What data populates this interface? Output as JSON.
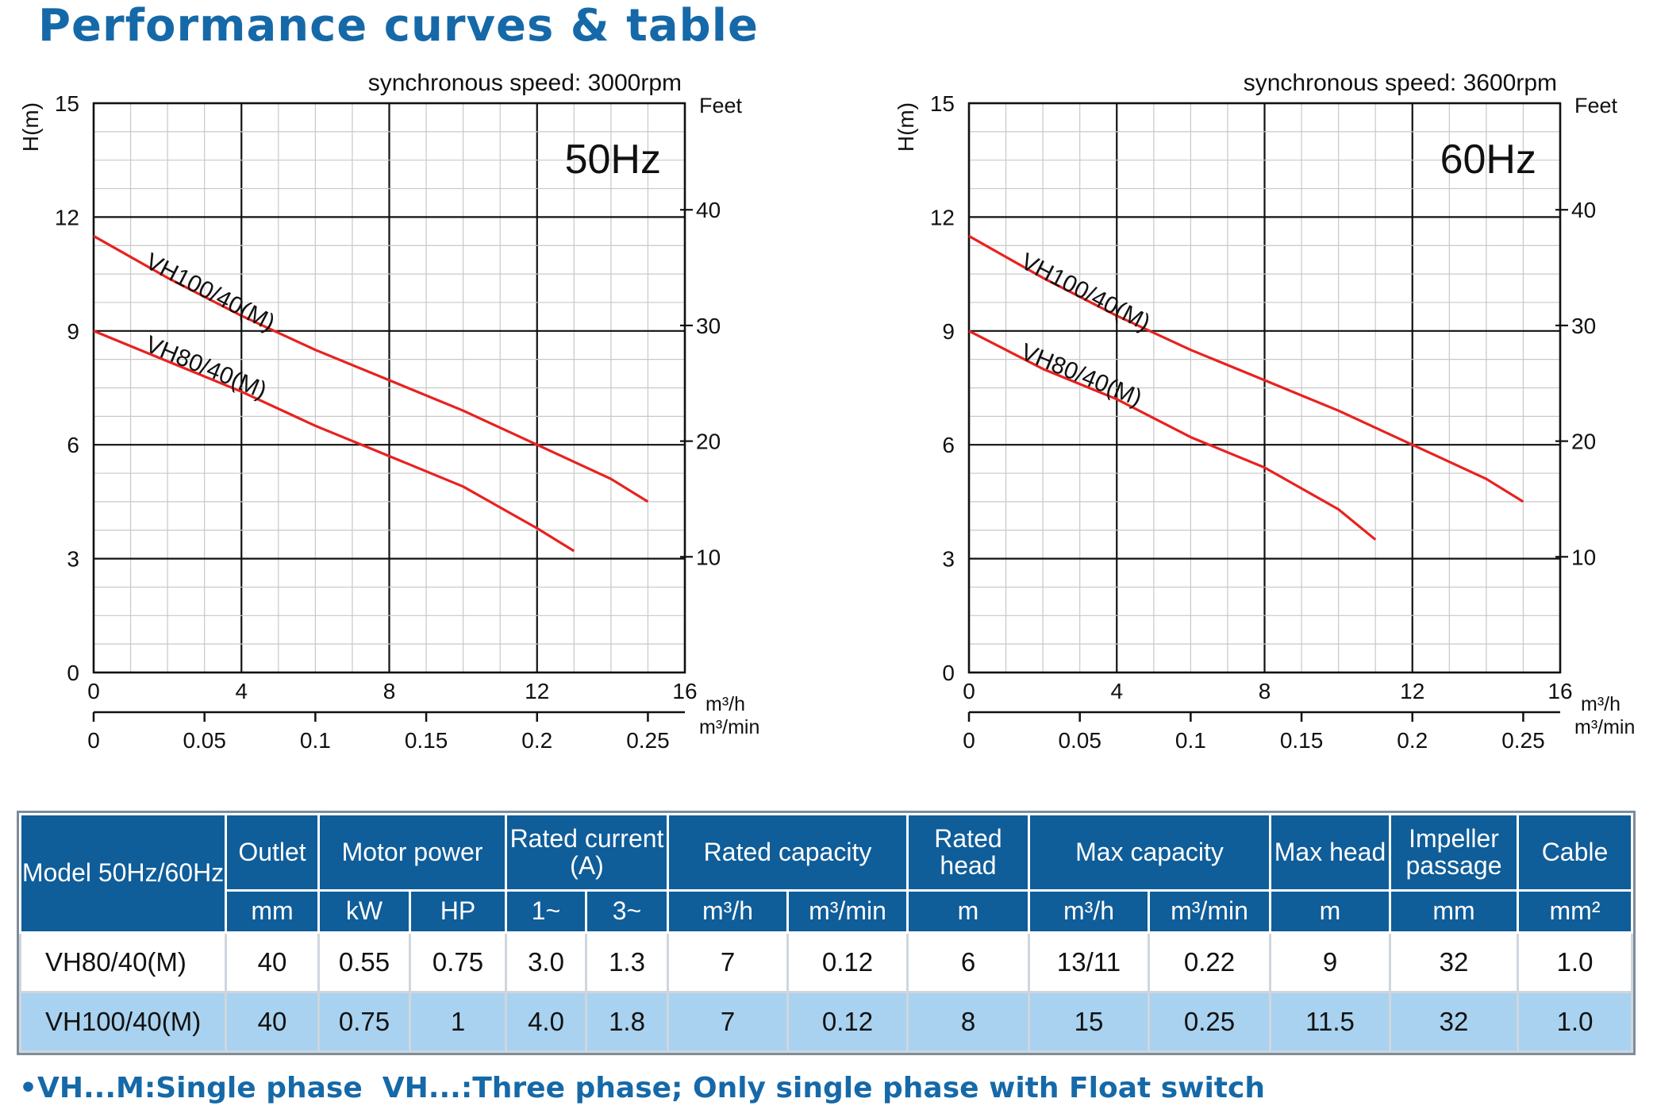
{
  "page": {
    "title": "Performance curves & table"
  },
  "chart_data": [
    {
      "type": "line",
      "badge": "50Hz",
      "speed_label": "synchronous speed: 3000rpm",
      "ylabel": "H(m)",
      "ylabel_right": "Feet",
      "xlabel_primary": "m³/h",
      "xlabel_secondary": "m³/min",
      "xlim": [
        0,
        16
      ],
      "ylim": [
        0,
        15
      ],
      "y_ticks": [
        "15",
        "12",
        "9",
        "6",
        "3",
        "0"
      ],
      "y_ticks_right": [
        "40",
        "30",
        "20",
        "10"
      ],
      "x_ticks": [
        "0",
        "4",
        "8",
        "12",
        "16"
      ],
      "x_ticks_secondary": [
        "0",
        "0.05",
        "0.1",
        "0.15",
        "0.2",
        "0.25"
      ],
      "grid": true,
      "series": [
        {
          "name": "VH100/40(M)",
          "color": "#e8221f",
          "x": [
            0,
            2,
            4,
            6,
            8,
            10,
            12,
            14,
            15
          ],
          "y": [
            11.5,
            10.4,
            9.4,
            8.5,
            7.7,
            6.9,
            6.0,
            5.1,
            4.5
          ]
        },
        {
          "name": "VH80/40(M)",
          "color": "#e8221f",
          "x": [
            0,
            2,
            4,
            6,
            8,
            10,
            12,
            13
          ],
          "y": [
            9.0,
            8.2,
            7.4,
            6.5,
            5.7,
            4.9,
            3.8,
            3.2
          ]
        }
      ]
    },
    {
      "type": "line",
      "badge": "60Hz",
      "speed_label": "synchronous speed: 3600rpm",
      "ylabel": "H(m)",
      "ylabel_right": "Feet",
      "xlabel_primary": "m³/h",
      "xlabel_secondary": "m³/min",
      "xlim": [
        0,
        16
      ],
      "ylim": [
        0,
        15
      ],
      "y_ticks": [
        "15",
        "12",
        "9",
        "6",
        "3",
        "0"
      ],
      "y_ticks_right": [
        "40",
        "30",
        "20",
        "10"
      ],
      "x_ticks": [
        "0",
        "4",
        "8",
        "12",
        "16"
      ],
      "x_ticks_secondary": [
        "0",
        "0.05",
        "0.1",
        "0.15",
        "0.2",
        "0.25"
      ],
      "grid": true,
      "series": [
        {
          "name": "VH100/40(M)",
          "color": "#e8221f",
          "x": [
            0,
            2,
            4,
            6,
            8,
            10,
            12,
            14,
            15
          ],
          "y": [
            11.5,
            10.4,
            9.4,
            8.5,
            7.7,
            6.9,
            6.0,
            5.1,
            4.5
          ]
        },
        {
          "name": "VH80/40(M)",
          "color": "#e8221f",
          "x": [
            0,
            2,
            4,
            6,
            8,
            10,
            11
          ],
          "y": [
            9.0,
            8.0,
            7.2,
            6.2,
            5.4,
            4.3,
            3.5
          ]
        }
      ]
    }
  ],
  "table": {
    "header1": [
      "Model 50Hz/60Hz",
      "Outlet",
      "Motor power",
      "Rated current (A)",
      "Rated capacity",
      "Rated head",
      "Max capacity",
      "Max head",
      "Impeller passage",
      "Cable"
    ],
    "header2": [
      "mm",
      "kW",
      "HP",
      "1~",
      "3~",
      "m³/h",
      "m³/min",
      "m",
      "m³/h",
      "m³/min",
      "m",
      "mm",
      "mm²"
    ],
    "rows": [
      [
        "VH80/40(M)",
        "40",
        "0.55",
        "0.75",
        "3.0",
        "1.3",
        "7",
        "0.12",
        "6",
        "13/11",
        "0.22",
        "9",
        "32",
        "1.0"
      ],
      [
        "VH100/40(M)",
        "40",
        "0.75",
        "1",
        "4.0",
        "1.8",
        "7",
        "0.12",
        "8",
        "15",
        "0.25",
        "11.5",
        "32",
        "1.0"
      ]
    ]
  },
  "note": "•VH...M:Single phase  VH...:Three phase; Only single phase with Float switch",
  "colors": {
    "brand_blue": "#1569a8",
    "header_blue": "#0f5d99",
    "row_alt": "#a8d2ef",
    "curve_red": "#e8221f"
  }
}
